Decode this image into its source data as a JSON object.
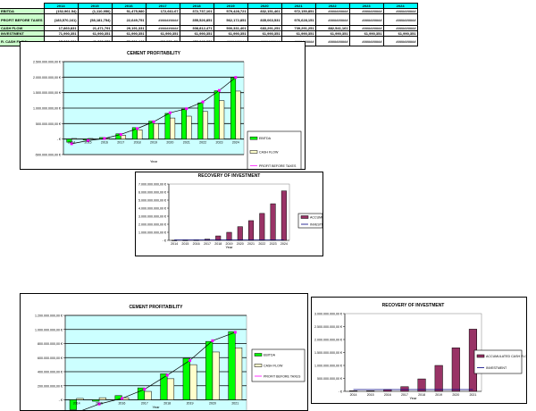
{
  "table": {
    "years": [
      "2014",
      "2015",
      "2016",
      "2017",
      "2018",
      "2019",
      "2020",
      "2021",
      "2022",
      "2023",
      "2024"
    ],
    "rows": [
      {
        "label": "EBITDA",
        "values": [
          "(152,961.54)",
          "(1,110,950)",
          "51,475,980",
          "172,661.67",
          "372,737,101",
          "579,428,721",
          "832,151,461",
          "972,150,851",
          "##########",
          "##########",
          "##########"
        ]
      },
      {
        "label": "PROFIT BEFORE TAXES",
        "values": [
          "(183,570,161)",
          "(58,181,754)",
          "22,649,751",
          "##########",
          "355,526,851",
          "562,172,851",
          "835,063,531",
          "976,628,151",
          "##########",
          "##########",
          "##########"
        ]
      },
      {
        "label": "CASH FLOW",
        "values": [
          "17,860,831",
          "21,471,791",
          "29,191,331",
          "##########",
          "308,812,471",
          "500,331,401",
          "683,291,251",
          "739,291,251",
          "882,541,161",
          "##########",
          "##########"
        ]
      },
      {
        "label": "INVESTMENT",
        "values": [
          "71,990,351",
          "61,990,351",
          "61,990,351",
          "61,990,351",
          "61,990,351",
          "61,990,351",
          "61,990,351",
          "61,990,351",
          "61,990,351",
          "61,990,351",
          "61,990,351"
        ]
      },
      {
        "label": "R. CASH FLOW",
        "values": [
          "17,860,831",
          "41,880,371",
          "73,801,441",
          "(96,231,41)",
          "456,242,881",
          "##########",
          "##########",
          "##########",
          "##########",
          "##########",
          "##########"
        ]
      }
    ]
  },
  "chart_data": [
    {
      "type": "bar",
      "title": "CEMENT PROFITABILITY",
      "xlabel": "Year",
      "ylim": [
        -500,
        2500
      ],
      "step": 500,
      "yticks": [
        "-500.000.000,00 €",
        "- €",
        "500.000.000,00 €",
        "1.000.000.000,00 €",
        "1.500.000.000,00 €",
        "2.000.000.000,00 €",
        "2.500.000.000,00 €"
      ],
      "categories": [
        "2014",
        "2015",
        "2016",
        "2017",
        "2018",
        "2019",
        "2020",
        "2021",
        "2022",
        "2023",
        "2024"
      ],
      "series": [
        {
          "name": "EBITDA",
          "kind": "bar",
          "color": "#00ff00",
          "values": [
            -100,
            -30,
            50,
            170,
            370,
            580,
            830,
            970,
            1170,
            1560,
            1980
          ]
        },
        {
          "name": "CASH FLOW",
          "kind": "bar",
          "color": "#ffffcc",
          "values": [
            20,
            20,
            30,
            120,
            300,
            500,
            680,
            740,
            890,
            1240,
            1550
          ]
        },
        {
          "name": "PROFIT BEFORE TAXES",
          "kind": "line",
          "color": "#ff00ff",
          "values": [
            -150,
            -50,
            20,
            150,
            340,
            560,
            850,
            980,
            1200,
            1570,
            1990
          ]
        }
      ]
    },
    {
      "type": "bar",
      "title": "RECOVERY OF INVESTMENT",
      "xlabel": "Year",
      "ylim": [
        0,
        7000
      ],
      "step": 1000,
      "yticks": [
        "- €",
        "1.000.000.000,00 €",
        "2.000.000.000,00 €",
        "3.000.000.000,00 €",
        "4.000.000.000,00 €",
        "5.000.000.000,00 €",
        "6.000.000.000,00 €",
        "7.000.000.000,00 €"
      ],
      "categories": [
        "2014",
        "2015",
        "2016",
        "2017",
        "2018",
        "2019",
        "2020",
        "2021",
        "2022",
        "2023",
        "2024"
      ],
      "series": [
        {
          "name": "ACCUMULATED CASH FLOW",
          "kind": "bar",
          "color": "#993366",
          "values": [
            10,
            20,
            30,
            150,
            550,
            1000,
            1700,
            2450,
            3350,
            4550,
            6150
          ]
        },
        {
          "name": "INVESTMENT",
          "kind": "line",
          "color": "#000080",
          "values": [
            60,
            60,
            60,
            60,
            60,
            60,
            60,
            60,
            60,
            60,
            60
          ]
        }
      ]
    },
    {
      "type": "bar",
      "title": "CEMENT PROFITABILITY",
      "xlabel": "Year",
      "ylim": [
        -400,
        1200
      ],
      "step": 200,
      "yticks": [
        "-400.000.000,00 €",
        "-200.000.000,00 €",
        "- €",
        "200.000.000,00 €",
        "400.000.000,00 €",
        "600.000.000,00 €",
        "800.000.000,00 €",
        "1.000.000.000,00 €",
        "1.200.000.000,00 €"
      ],
      "categories": [
        "2014",
        "2015",
        "2016",
        "2017",
        "2018",
        "2019",
        "2020",
        "2021"
      ],
      "series": [
        {
          "name": "EBITDA",
          "kind": "bar",
          "color": "#00ff00",
          "values": [
            -140,
            -20,
            60,
            170,
            370,
            590,
            830,
            970
          ]
        },
        {
          "name": "CASH FLOW",
          "kind": "bar",
          "color": "#ffffcc",
          "values": [
            20,
            30,
            30,
            120,
            300,
            500,
            680,
            740
          ]
        },
        {
          "name": "PROFIT BEFORE TAXES",
          "kind": "line",
          "color": "#ff00ff",
          "values": [
            -180,
            -60,
            20,
            150,
            350,
            560,
            840,
            960
          ]
        }
      ]
    },
    {
      "type": "bar",
      "title": "RECOVERY OF INVESTMENT",
      "xlabel": "Year",
      "ylim": [
        0,
        3000
      ],
      "step": 500,
      "yticks": [
        "- €",
        "500.000.000,00 €",
        "1.000.000.000,00 €",
        "1.500.000.000,00 €",
        "2.000.000.000,00 €",
        "2.500.000.000,00 €",
        "3.000.000.000,00 €"
      ],
      "categories": [
        "2014",
        "2015",
        "2016",
        "2017",
        "2018",
        "2019",
        "2020",
        "2021"
      ],
      "series": [
        {
          "name": "ACCUMULATED CASH FLOW",
          "kind": "bar",
          "color": "#993366",
          "values": [
            20,
            20,
            70,
            180,
            480,
            1000,
            1680,
            2400
          ]
        },
        {
          "name": "INVESTMENT",
          "kind": "line",
          "color": "#000080",
          "values": [
            70,
            70,
            70,
            70,
            70,
            70,
            70,
            70
          ]
        }
      ]
    }
  ]
}
